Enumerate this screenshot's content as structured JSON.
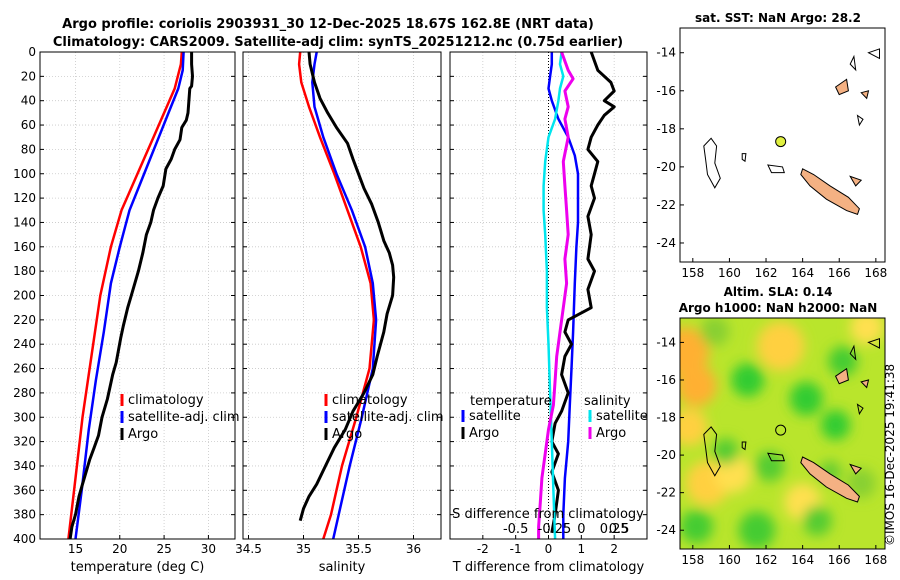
{
  "title": {
    "line1": "Argo profile: coriolis 2903931_30 12-Dec-2025 18.67S 162.8E (NRT data)",
    "line2": "Climatology: CARS2009. Satellite-adj clim: synTS_20251212.nc (0.75d earlier)"
  },
  "colors": {
    "clim": "#ff0000",
    "sat": "#0000ff",
    "argo": "#000000",
    "cyan": "#00e5ee",
    "magenta": "#ee00ee",
    "land": "#f4b183"
  },
  "depth_axis": {
    "ticks": [
      0,
      20,
      40,
      60,
      80,
      100,
      120,
      140,
      160,
      180,
      200,
      220,
      240,
      260,
      280,
      300,
      320,
      340,
      360,
      380,
      400
    ],
    "ylim": [
      0,
      400
    ]
  },
  "chart_data": [
    {
      "type": "line",
      "name": "temperature-profile",
      "xlabel": "temperature (deg C)",
      "xlim": [
        11,
        33
      ],
      "xticks": [
        15,
        20,
        25,
        30
      ],
      "legend": [
        "climatology",
        "satellite-adj. clim",
        "Argo"
      ],
      "series": [
        {
          "name": "climatology",
          "color": "#ff0000",
          "points": [
            [
              27.0,
              0
            ],
            [
              26.9,
              10
            ],
            [
              26.2,
              30
            ],
            [
              25.0,
              50
            ],
            [
              23.8,
              70
            ],
            [
              22.6,
              90
            ],
            [
              21.4,
              110
            ],
            [
              20.2,
              130
            ],
            [
              19.0,
              160
            ],
            [
              17.8,
              200
            ],
            [
              16.8,
              250
            ],
            [
              15.8,
              300
            ],
            [
              15.0,
              350
            ],
            [
              14.2,
              400
            ]
          ]
        },
        {
          "name": "satellite-adj. clim",
          "color": "#0000ff",
          "points": [
            [
              27.2,
              0
            ],
            [
              27.1,
              15
            ],
            [
              26.6,
              30
            ],
            [
              25.5,
              50
            ],
            [
              24.4,
              70
            ],
            [
              23.3,
              90
            ],
            [
              22.2,
              110
            ],
            [
              21.1,
              130
            ],
            [
              20.0,
              160
            ],
            [
              19.0,
              190
            ],
            [
              18.2,
              230
            ],
            [
              17.3,
              270
            ],
            [
              16.5,
              310
            ],
            [
              15.7,
              360
            ],
            [
              15.0,
              400
            ]
          ]
        },
        {
          "name": "Argo",
          "color": "#000000",
          "points": [
            [
              28.1,
              0
            ],
            [
              28.1,
              10
            ],
            [
              28.2,
              20
            ],
            [
              28.1,
              28
            ],
            [
              27.9,
              30
            ],
            [
              27.8,
              40
            ],
            [
              27.7,
              50
            ],
            [
              27.5,
              56
            ],
            [
              27.0,
              62
            ],
            [
              26.8,
              72
            ],
            [
              26.2,
              80
            ],
            [
              25.8,
              88
            ],
            [
              25.2,
              96
            ],
            [
              24.9,
              110
            ],
            [
              24.3,
              120
            ],
            [
              23.8,
              130
            ],
            [
              23.5,
              140
            ],
            [
              23.0,
              150
            ],
            [
              22.6,
              165
            ],
            [
              22.1,
              180
            ],
            [
              21.3,
              200
            ],
            [
              20.9,
              210
            ],
            [
              20.4,
              225
            ],
            [
              20.1,
              235
            ],
            [
              19.6,
              255
            ],
            [
              19.2,
              265
            ],
            [
              18.6,
              285
            ],
            [
              18.0,
              300
            ],
            [
              17.6,
              315
            ],
            [
              17.1,
              325
            ],
            [
              16.6,
              335
            ],
            [
              16.2,
              345
            ],
            [
              15.8,
              355
            ],
            [
              15.4,
              365
            ],
            [
              15.0,
              380
            ],
            [
              14.6,
              390
            ],
            [
              14.4,
              400
            ]
          ]
        }
      ]
    },
    {
      "type": "line",
      "name": "salinity-profile",
      "xlabel": "salinity",
      "xlim": [
        34.45,
        36.25
      ],
      "xticks": [
        34.5,
        35,
        35.5,
        36
      ],
      "legend": [
        "climatology",
        "satellite-adj. clim",
        "Argo"
      ],
      "series": [
        {
          "name": "climatology",
          "color": "#ff0000",
          "points": [
            [
              34.97,
              0
            ],
            [
              34.96,
              10
            ],
            [
              34.98,
              25
            ],
            [
              35.05,
              45
            ],
            [
              35.15,
              70
            ],
            [
              35.28,
              100
            ],
            [
              35.4,
              130
            ],
            [
              35.52,
              160
            ],
            [
              35.61,
              190
            ],
            [
              35.64,
              220
            ],
            [
              35.6,
              260
            ],
            [
              35.48,
              300
            ],
            [
              35.35,
              340
            ],
            [
              35.25,
              380
            ],
            [
              35.18,
              400
            ]
          ]
        },
        {
          "name": "satellite-adj. clim",
          "color": "#0000ff",
          "points": [
            [
              35.12,
              0
            ],
            [
              35.1,
              10
            ],
            [
              35.08,
              25
            ],
            [
              35.1,
              45
            ],
            [
              35.18,
              70
            ],
            [
              35.3,
              100
            ],
            [
              35.44,
              130
            ],
            [
              35.56,
              160
            ],
            [
              35.63,
              190
            ],
            [
              35.66,
              220
            ],
            [
              35.63,
              260
            ],
            [
              35.53,
              300
            ],
            [
              35.42,
              340
            ],
            [
              35.32,
              380
            ],
            [
              35.27,
              400
            ]
          ]
        },
        {
          "name": "Argo",
          "color": "#000000",
          "points": [
            [
              35.05,
              0
            ],
            [
              35.06,
              10
            ],
            [
              35.1,
              25
            ],
            [
              35.15,
              38
            ],
            [
              35.22,
              50
            ],
            [
              35.3,
              62
            ],
            [
              35.4,
              75
            ],
            [
              35.45,
              88
            ],
            [
              35.5,
              100
            ],
            [
              35.55,
              112
            ],
            [
              35.62,
              125
            ],
            [
              35.68,
              140
            ],
            [
              35.73,
              155
            ],
            [
              35.78,
              165
            ],
            [
              35.81,
              175
            ],
            [
              35.82,
              185
            ],
            [
              35.81,
              200
            ],
            [
              35.76,
              215
            ],
            [
              35.73,
              230
            ],
            [
              35.67,
              250
            ],
            [
              35.63,
              265
            ],
            [
              35.55,
              280
            ],
            [
              35.45,
              295
            ],
            [
              35.38,
              310
            ],
            [
              35.28,
              325
            ],
            [
              35.2,
              340
            ],
            [
              35.12,
              355
            ],
            [
              35.05,
              365
            ],
            [
              35.0,
              375
            ],
            [
              34.97,
              385
            ]
          ]
        }
      ]
    },
    {
      "type": "line",
      "name": "difference-profile",
      "xlabel": "T difference from climatology",
      "xlabel_top": "S difference from climatology",
      "xlim": [
        -3,
        3
      ],
      "xticks": [
        -2,
        -1,
        0,
        1,
        2
      ],
      "xtick_labels": [
        "-2",
        "-1",
        "0",
        "1",
        "2"
      ],
      "top_tick_labels": [
        "-0.5",
        "-0.25",
        "0",
        "0.25",
        "0.5"
      ],
      "legend_left_title": "temperature",
      "legend_right_title": "salinity",
      "legend": [
        "satellite",
        "Argo",
        "satellite",
        "Argo"
      ],
      "series": [
        {
          "name": "T satellite",
          "color": "#0000ff",
          "points": [
            [
              0.1,
              0
            ],
            [
              0.1,
              10
            ],
            [
              0.05,
              20
            ],
            [
              0.0,
              30
            ],
            [
              0.1,
              40
            ],
            [
              0.3,
              55
            ],
            [
              0.6,
              70
            ],
            [
              0.8,
              85
            ],
            [
              0.9,
              100
            ],
            [
              0.9,
              120
            ],
            [
              0.9,
              140
            ],
            [
              0.85,
              160
            ],
            [
              0.8,
              190
            ],
            [
              0.75,
              230
            ],
            [
              0.7,
              260
            ],
            [
              0.65,
              290
            ],
            [
              0.6,
              320
            ],
            [
              0.5,
              350
            ],
            [
              0.45,
              380
            ],
            [
              0.45,
              400
            ]
          ]
        },
        {
          "name": "T Argo",
          "color": "#000000",
          "points": [
            [
              1.3,
              0
            ],
            [
              1.5,
              15
            ],
            [
              1.9,
              25
            ],
            [
              2.0,
              32
            ],
            [
              1.7,
              40
            ],
            [
              2.0,
              45
            ],
            [
              1.7,
              52
            ],
            [
              1.5,
              60
            ],
            [
              1.3,
              70
            ],
            [
              1.2,
              80
            ],
            [
              1.5,
              90
            ],
            [
              1.4,
              100
            ],
            [
              1.3,
              110
            ],
            [
              1.4,
              120
            ],
            [
              1.2,
              135
            ],
            [
              1.3,
              150
            ],
            [
              1.2,
              170
            ],
            [
              1.4,
              180
            ],
            [
              1.2,
              195
            ],
            [
              1.3,
              210
            ],
            [
              0.6,
              220
            ],
            [
              0.5,
              230
            ],
            [
              0.7,
              240
            ],
            [
              0.5,
              250
            ],
            [
              0.4,
              265
            ],
            [
              0.6,
              280
            ],
            [
              0.4,
              295
            ],
            [
              0.2,
              305
            ],
            [
              0.1,
              320
            ],
            [
              0.3,
              330
            ],
            [
              0.1,
              345
            ],
            [
              0.3,
              360
            ],
            [
              0.2,
              380
            ],
            [
              0.1,
              395
            ]
          ]
        },
        {
          "name": "S satellite",
          "color": "#00e5ee",
          "points": [
            [
              0.4,
              0
            ],
            [
              0.35,
              10
            ],
            [
              0.45,
              20
            ],
            [
              0.35,
              30
            ],
            [
              0.3,
              40
            ],
            [
              0.2,
              55
            ],
            [
              0.0,
              70
            ],
            [
              -0.1,
              90
            ],
            [
              -0.15,
              110
            ],
            [
              -0.15,
              130
            ],
            [
              -0.1,
              150
            ],
            [
              -0.05,
              180
            ],
            [
              -0.05,
              210
            ],
            [
              0.0,
              240
            ],
            [
              0.05,
              280
            ],
            [
              0.1,
              320
            ],
            [
              0.15,
              360
            ],
            [
              0.2,
              400
            ]
          ]
        },
        {
          "name": "S Argo",
          "color": "#ee00ee",
          "points": [
            [
              0.4,
              0
            ],
            [
              0.6,
              15
            ],
            [
              0.75,
              22
            ],
            [
              0.5,
              32
            ],
            [
              0.6,
              45
            ],
            [
              0.5,
              55
            ],
            [
              0.6,
              70
            ],
            [
              0.45,
              90
            ],
            [
              0.5,
              110
            ],
            [
              0.55,
              130
            ],
            [
              0.6,
              150
            ],
            [
              0.5,
              170
            ],
            [
              0.55,
              190
            ],
            [
              0.45,
              210
            ],
            [
              0.35,
              230
            ],
            [
              0.25,
              250
            ],
            [
              0.2,
              270
            ],
            [
              0.15,
              290
            ],
            [
              0.0,
              310
            ],
            [
              -0.1,
              330
            ],
            [
              -0.2,
              350
            ],
            [
              -0.25,
              370
            ],
            [
              -0.3,
              390
            ],
            [
              -0.3,
              400
            ]
          ]
        }
      ]
    }
  ],
  "map_sst": {
    "title": "sat. SST: NaN Argo: 28.2",
    "xlim": [
      157.3,
      168.5
    ],
    "ylim": [
      -25,
      -12.7
    ],
    "xticks": [
      158,
      160,
      162,
      164,
      166,
      168
    ],
    "yticks": [
      -14,
      -16,
      -18,
      -20,
      -22,
      -24
    ],
    "marker": {
      "lon": 162.8,
      "lat": -18.67
    }
  },
  "map_sla": {
    "title1": "Altim. SLA: 0.14",
    "title2": "Argo h1000: NaN h2000: NaN",
    "xlim": [
      157.3,
      168.5
    ],
    "ylim": [
      -25,
      -12.7
    ],
    "xticks": [
      158,
      160,
      162,
      164,
      166,
      168
    ],
    "yticks": [
      -14,
      -16,
      -18,
      -20,
      -22,
      -24
    ],
    "marker": {
      "lon": 162.8,
      "lat": -18.67
    }
  },
  "watermark": "©IMOS 16-Dec-2025 19:41:38"
}
